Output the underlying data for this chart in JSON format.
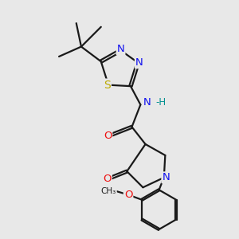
{
  "bg_color": "#e8e8e8",
  "bond_color": "#1a1a1a",
  "bond_width": 1.6,
  "dbo": 0.055,
  "atom_colors": {
    "N": "#1010ee",
    "O": "#ee1010",
    "S": "#bbaa00",
    "NH": "#009090",
    "C": "#1a1a1a"
  },
  "font_size": 8.5
}
